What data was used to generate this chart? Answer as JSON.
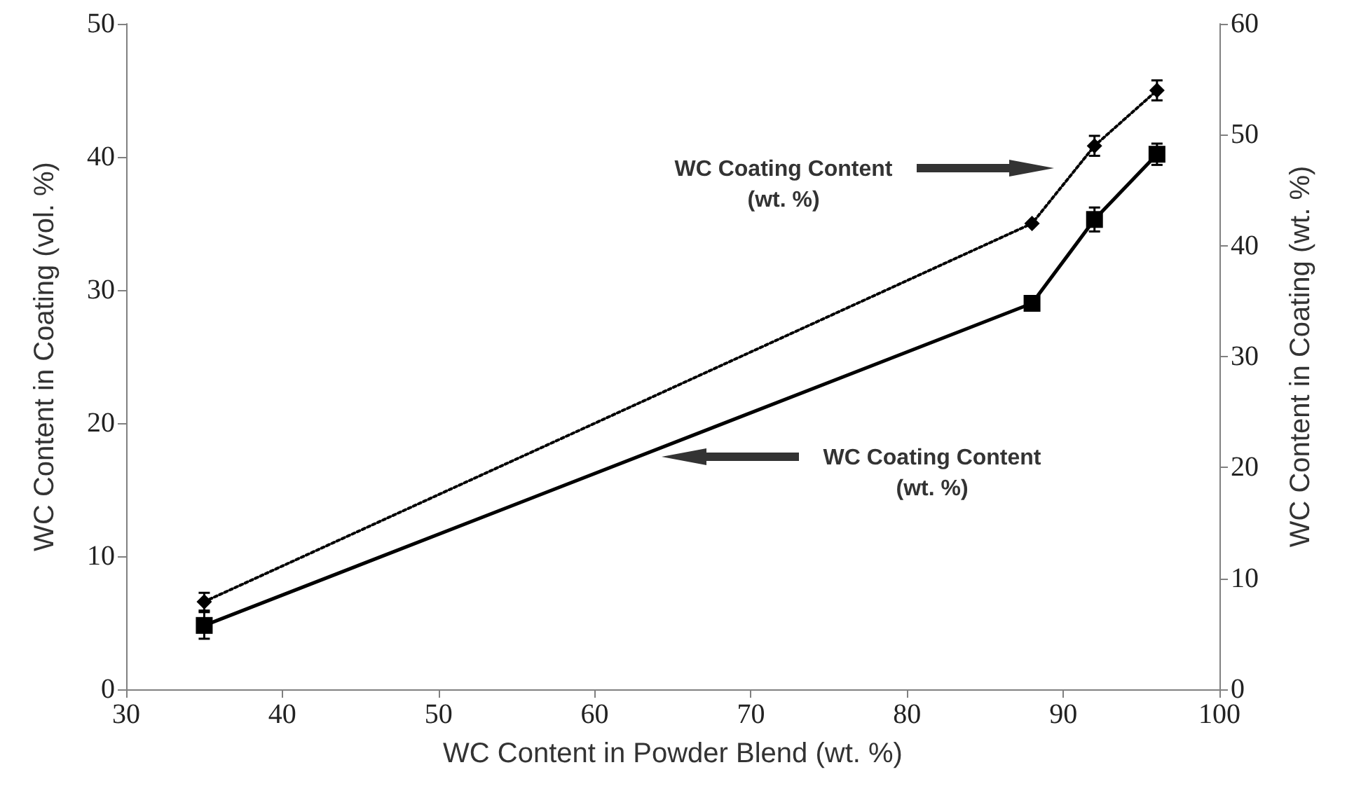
{
  "chart_data": {
    "type": "line",
    "xlabel": "WC Content in Powder Blend (wt. %)",
    "ylabel": "WC Content in Coating (vol. %)",
    "y2label": "WC Content in Coating (wt. %)",
    "x": [
      35,
      88,
      92,
      96
    ],
    "series": [
      {
        "color": "#000000",
        "marker": "square",
        "line_style": "solid",
        "values": [
          4.8,
          29.0,
          35.3,
          40.2
        ],
        "errors": [
          1.0,
          null,
          0.9,
          0.8
        ]
      },
      {
        "color": "#000000",
        "marker": "diamond",
        "line_style": "dotted",
        "axis": "y2",
        "values": [
          7.9,
          42.0,
          49.0,
          54.0
        ],
        "errors": [
          0.8,
          null,
          0.9,
          0.9
        ]
      }
    ],
    "xlim": [
      30,
      100
    ],
    "xticks": [
      30,
      40,
      50,
      60,
      70,
      80,
      90,
      100
    ],
    "ylim": [
      0,
      50
    ],
    "yticks": [
      0,
      10,
      20,
      30,
      40,
      50
    ],
    "y2lim": [
      0,
      60
    ],
    "y2ticks": [
      0,
      10,
      20,
      30,
      40,
      50,
      60
    ],
    "annotations": [
      "WC Coating Content\n(wt. %)",
      "WC Coating Content\n(wt. %)"
    ],
    "grid": false
  }
}
